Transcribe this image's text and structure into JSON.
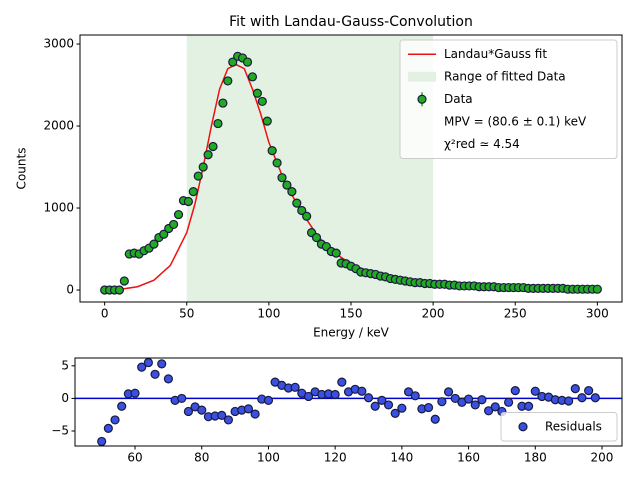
{
  "chart_data": [
    {
      "type": "scatter",
      "title": "Fit with Landau-Gauss-Convolution",
      "xlabel": "Energy / keV",
      "ylabel": "Counts",
      "xlim": [
        -15,
        315
      ],
      "ylim": [
        -146,
        3110
      ],
      "xticks": [
        0,
        50,
        100,
        150,
        200,
        250,
        300
      ],
      "yticks": [
        0,
        1000,
        2000,
        3000
      ],
      "fit_range": [
        50,
        200
      ],
      "fit_range_label": "Range of fitted Data",
      "fit_range_color": "#e3f1e3",
      "series": [
        {
          "name": "Landau*Gauss fit",
          "type": "line",
          "color": "#ee1111",
          "x": [
            0,
            10,
            20,
            30,
            40,
            50,
            55,
            60,
            65,
            70,
            75,
            80,
            85,
            90,
            95,
            100,
            110,
            120,
            130,
            140,
            150,
            160,
            170,
            180,
            200,
            220,
            250,
            300
          ],
          "values": [
            0,
            10,
            40,
            120,
            300,
            700,
            1050,
            1500,
            2000,
            2450,
            2700,
            2750,
            2700,
            2450,
            2150,
            1800,
            1300,
            950,
            650,
            450,
            320,
            230,
            170,
            130,
            80,
            55,
            35,
            15
          ]
        },
        {
          "name": "Data",
          "type": "scatter",
          "color": "#22aa22",
          "x": [
            0,
            3,
            6,
            9,
            12,
            15,
            18,
            21,
            24,
            27,
            30,
            33,
            36,
            39,
            42,
            45,
            48,
            51,
            54,
            57,
            60,
            63,
            66,
            69,
            72,
            75,
            78,
            81,
            84,
            87,
            90,
            93,
            96,
            99,
            102,
            105,
            108,
            111,
            114,
            117,
            120,
            123,
            126,
            129,
            132,
            135,
            138,
            141,
            144,
            147,
            150,
            153,
            156,
            159,
            162,
            165,
            168,
            171,
            174,
            177,
            180,
            183,
            186,
            189,
            192,
            195,
            198,
            201,
            204,
            207,
            210,
            213,
            216,
            219,
            222,
            225,
            228,
            231,
            234,
            237,
            240,
            243,
            246,
            249,
            252,
            255,
            258,
            261,
            264,
            267,
            270,
            273,
            276,
            279,
            282,
            285,
            288,
            291,
            294,
            297,
            300
          ],
          "values": [
            0,
            0,
            0,
            0,
            110,
            440,
            450,
            440,
            480,
            510,
            560,
            640,
            680,
            750,
            800,
            920,
            1090,
            1080,
            1200,
            1390,
            1500,
            1650,
            1750,
            2030,
            2280,
            2550,
            2780,
            2850,
            2830,
            2780,
            2600,
            2400,
            2300,
            2060,
            1700,
            1550,
            1370,
            1280,
            1200,
            1060,
            970,
            900,
            700,
            640,
            560,
            530,
            470,
            450,
            330,
            320,
            290,
            260,
            220,
            210,
            200,
            190,
            170,
            160,
            140,
            130,
            120,
            110,
            100,
            90,
            90,
            80,
            80,
            70,
            70,
            70,
            60,
            60,
            50,
            50,
            50,
            50,
            40,
            40,
            40,
            40,
            30,
            30,
            30,
            30,
            30,
            30,
            20,
            20,
            20,
            20,
            20,
            20,
            20,
            20,
            10,
            10,
            10,
            10,
            10,
            10,
            10
          ]
        }
      ],
      "annotations": [
        "MPV = (80.6 ± 0.1) keV",
        "χ²red ≃ 4.54"
      ],
      "legend": "upper right"
    },
    {
      "type": "scatter",
      "xlim": [
        42,
        206
      ],
      "ylim": [
        -7.3,
        6.2
      ],
      "xticks": [
        60,
        80,
        100,
        120,
        140,
        160,
        180,
        200
      ],
      "yticks": [
        {
          "value": -5,
          "label": "−5"
        },
        0,
        5
      ],
      "hline": 0,
      "hline_color": "#0000cc",
      "series": [
        {
          "name": "Residuals",
          "type": "scatter",
          "color": "#3a50e0",
          "x": [
            50,
            52,
            54,
            56,
            58,
            60,
            62,
            64,
            66,
            68,
            70,
            72,
            74,
            76,
            78,
            80,
            82,
            84,
            86,
            88,
            90,
            92,
            94,
            96,
            98,
            100,
            102,
            104,
            106,
            108,
            110,
            112,
            114,
            116,
            118,
            120,
            122,
            124,
            126,
            128,
            130,
            132,
            134,
            136,
            138,
            140,
            142,
            144,
            146,
            148,
            150,
            152,
            154,
            156,
            158,
            160,
            162,
            164,
            166,
            168,
            170,
            172,
            174,
            176,
            178,
            180,
            182,
            184,
            186,
            188,
            190,
            192,
            194,
            196,
            198
          ],
          "values": [
            -6.6,
            -4.6,
            -3.3,
            -1.2,
            0.7,
            0.8,
            4.8,
            5.5,
            3.7,
            5.3,
            3.0,
            -0.3,
            0,
            -2.0,
            -1.3,
            -1.8,
            -2.8,
            -2.7,
            -2.6,
            -3.3,
            -2.0,
            -1.8,
            -1.6,
            -2.4,
            -0.1,
            -0.3,
            2.5,
            2.0,
            1.6,
            1.7,
            0.8,
            0.3,
            1.0,
            0.6,
            0.7,
            0.6,
            2.5,
            1.0,
            1.4,
            1.1,
            0.1,
            -1.2,
            -0.3,
            -1.0,
            -2.3,
            -1.5,
            1.0,
            0.4,
            -1.6,
            -1.4,
            -3.2,
            -0.5,
            1.0,
            0.0,
            -0.6,
            -0.1,
            -1.0,
            -0.2,
            -1.9,
            -1.3,
            -2.0,
            -0.6,
            1.2,
            -1.2,
            -1.2,
            1.1,
            0.3,
            0.2,
            -0.2,
            -0.3,
            -0.4,
            1.5,
            0.1,
            1.2,
            0.1
          ]
        }
      ],
      "legend": "lower right"
    }
  ]
}
